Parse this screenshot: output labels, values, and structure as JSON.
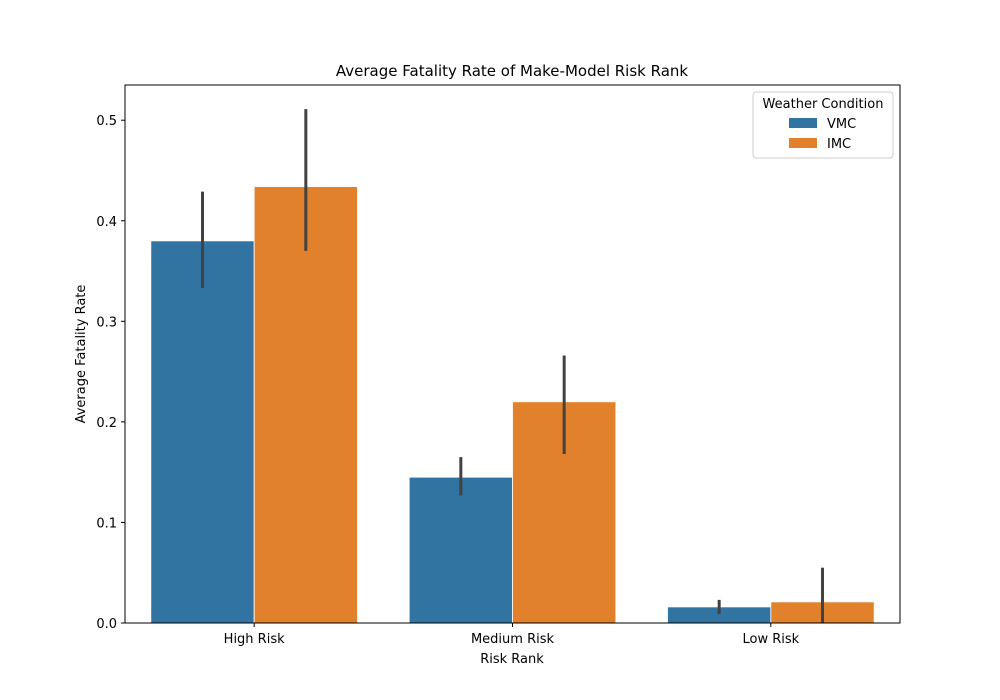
{
  "chart_data": {
    "type": "bar",
    "title": "Average Fatality Rate of Make-Model Risk Rank",
    "xlabel": "Risk Rank",
    "ylabel": "Average Fatality Rate",
    "categories": [
      "High Risk",
      "Medium Risk",
      "Low Risk"
    ],
    "ylim": [
      0,
      0.535
    ],
    "yticks": [
      0.0,
      0.1,
      0.2,
      0.3,
      0.4,
      0.5
    ],
    "ytick_labels": [
      "0.0",
      "0.1",
      "0.2",
      "0.3",
      "0.4",
      "0.5"
    ],
    "grid": false,
    "legend": {
      "title": "Weather Condition",
      "placement": "top-right"
    },
    "series": [
      {
        "name": "VMC",
        "color": "#3274a1",
        "values": [
          0.38,
          0.145,
          0.016
        ],
        "error_low": [
          0.333,
          0.127,
          0.009
        ],
        "error_high": [
          0.429,
          0.165,
          0.023
        ]
      },
      {
        "name": "IMC",
        "color": "#e1812c",
        "values": [
          0.434,
          0.22,
          0.021
        ],
        "error_low": [
          0.37,
          0.168,
          0.0
        ],
        "error_high": [
          0.511,
          0.266,
          0.055
        ]
      }
    ]
  }
}
